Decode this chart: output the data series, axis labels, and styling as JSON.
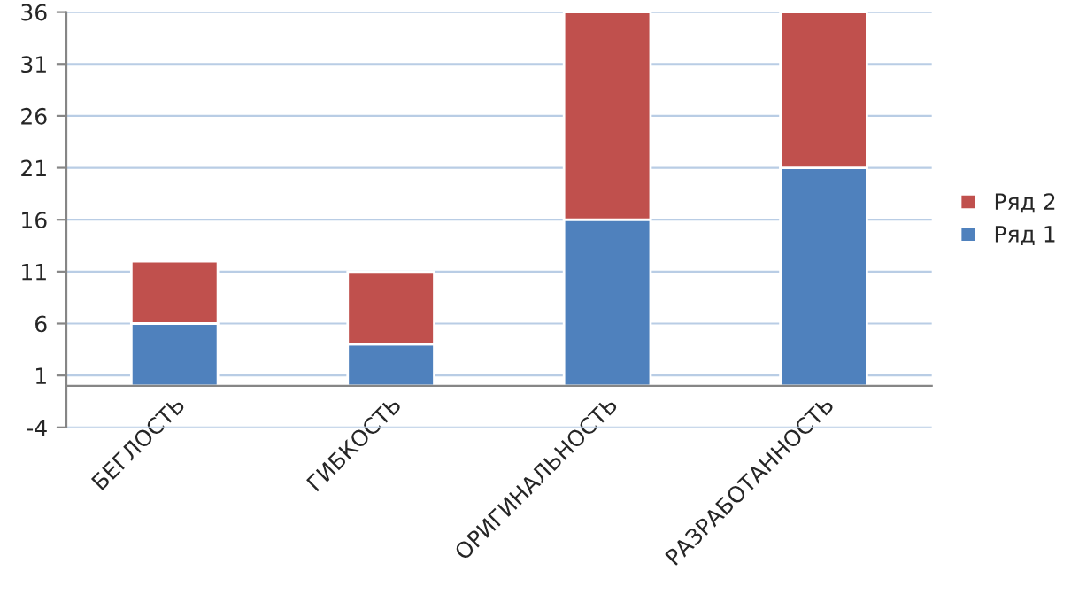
{
  "chart_data": {
    "type": "bar",
    "stacked": true,
    "categories": [
      "БЕГЛОСТЬ",
      "ГИБКОСТЬ",
      "ОРИГИНАЛЬНОСТЬ",
      "РАЗРАБОТАННОСТЬ"
    ],
    "series": [
      {
        "name": "Ряд 1",
        "color": "#4f81bd",
        "values": [
          6,
          4,
          16,
          21
        ]
      },
      {
        "name": "Ряд 2",
        "color": "#c0504d",
        "values": [
          6,
          7,
          20,
          15
        ]
      }
    ],
    "ylim": [
      -4,
      36
    ],
    "yticks": [
      -4,
      1,
      6,
      11,
      16,
      21,
      26,
      31,
      36
    ],
    "grid": "y",
    "legend": "right"
  }
}
